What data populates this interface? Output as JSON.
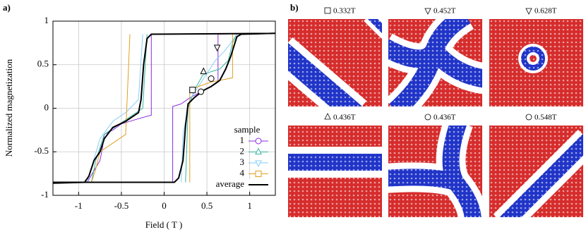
{
  "chart_data": {
    "type": "line",
    "panel_label": "a)",
    "xlabel": "Field ( T )",
    "ylabel": "Normalized magnetization",
    "xlim": [
      -1.3,
      1.3
    ],
    "xticks": [
      -1,
      -0.5,
      0,
      0.5,
      1
    ],
    "ylim": [
      -1,
      1
    ],
    "yticks": [
      1,
      0.5,
      0,
      -0.5,
      -1
    ],
    "grid": true,
    "legend_title": "sample",
    "legend": "lower right",
    "series": [
      {
        "name": "1",
        "color": "#8a2be2",
        "marker": "circle",
        "x": [
          0.1,
          0.1,
          0.2,
          0.3,
          0.45,
          0.6,
          0.63,
          0.63,
          1.0,
          null,
          -0.1,
          -0.15,
          -0.15,
          -0.3,
          -0.5,
          -0.6,
          -0.7,
          -0.72,
          -0.75,
          -0.9
        ],
        "y": [
          -0.85,
          0.02,
          0.05,
          0.12,
          0.2,
          0.28,
          0.3,
          0.85,
          0.86,
          null,
          0.85,
          0.85,
          -0.08,
          -0.12,
          -0.18,
          -0.25,
          -0.3,
          -0.45,
          -0.6,
          -0.85
        ]
      },
      {
        "name": "2",
        "color": "#3cb3a0",
        "marker": "tri-up",
        "x": [
          0.25,
          0.28,
          0.35,
          0.45,
          0.55,
          0.65,
          0.75,
          0.8,
          0.85,
          null,
          -0.2,
          -0.25,
          -0.4,
          -0.55,
          -0.7,
          -0.8,
          -0.85
        ],
        "y": [
          -0.85,
          0.0,
          0.2,
          0.38,
          0.42,
          0.45,
          0.55,
          0.75,
          0.85,
          null,
          0.85,
          0.0,
          -0.1,
          -0.2,
          -0.3,
          -0.6,
          -0.85
        ]
      },
      {
        "name": "3",
        "color": "#87cefa",
        "marker": "tri-down",
        "x": [
          0.2,
          0.22,
          0.3,
          0.4,
          0.5,
          0.6,
          0.7,
          0.78,
          0.85,
          null,
          -0.25,
          -0.3,
          -0.45,
          -0.6,
          -0.75,
          -0.9
        ],
        "y": [
          -0.85,
          -0.3,
          0.1,
          0.25,
          0.4,
          0.55,
          0.65,
          0.75,
          0.85,
          null,
          0.85,
          0.1,
          -0.05,
          -0.15,
          -0.35,
          -0.85
        ]
      },
      {
        "name": "4",
        "color": "#e0a020",
        "marker": "square",
        "x": [
          0.3,
          0.3,
          0.4,
          0.55,
          0.7,
          0.8,
          0.8,
          null,
          -0.4,
          -0.45,
          -0.6,
          -0.75,
          -0.8,
          -0.85
        ],
        "y": [
          -0.85,
          0.2,
          0.25,
          0.3,
          0.33,
          0.35,
          0.85,
          null,
          0.85,
          -0.3,
          -0.4,
          -0.5,
          -0.7,
          -0.85
        ]
      },
      {
        "name": "average",
        "color": "#000000",
        "marker": "none",
        "x": [
          -1.3,
          0.12,
          0.17,
          0.22,
          0.25,
          0.28,
          0.35,
          0.45,
          0.55,
          0.65,
          0.72,
          0.78,
          0.85,
          0.9,
          1.3,
          -0.15,
          -0.2,
          -0.24,
          -0.27,
          -0.3,
          -0.45,
          -0.6,
          -0.7,
          -0.75,
          -0.82,
          -0.88,
          -0.93,
          -1.3
        ],
        "y": [
          -0.85,
          -0.85,
          -0.8,
          -0.6,
          -0.2,
          0.05,
          0.12,
          0.2,
          0.25,
          0.32,
          0.45,
          0.6,
          0.82,
          0.85,
          0.86,
          0.85,
          0.8,
          0.5,
          0.1,
          -0.05,
          -0.15,
          -0.22,
          -0.35,
          -0.5,
          -0.6,
          -0.78,
          -0.85,
          -0.86
        ]
      }
    ],
    "snapshots": [
      {
        "marker": "square",
        "x": 0.332,
        "y": 0.21
      },
      {
        "marker": "tri-down",
        "x": 0.62,
        "y": 0.7
      },
      {
        "marker": "tri-up",
        "x": 0.46,
        "y": 0.42
      },
      {
        "marker": "circle",
        "x": 0.43,
        "y": 0.19
      },
      {
        "marker": "circle",
        "x": 0.55,
        "y": 0.34
      }
    ]
  },
  "panel_b": {
    "label": "b)",
    "images": [
      {
        "marker": "square",
        "label": "0.332T"
      },
      {
        "marker": "tri-down",
        "label": "0.452T"
      },
      {
        "marker": "tri-down",
        "label": "0.628T"
      },
      {
        "marker": "tri-up",
        "label": "0.436T"
      },
      {
        "marker": "circle",
        "label": "0.436T"
      },
      {
        "marker": "circle",
        "label": "0.548T"
      }
    ]
  }
}
